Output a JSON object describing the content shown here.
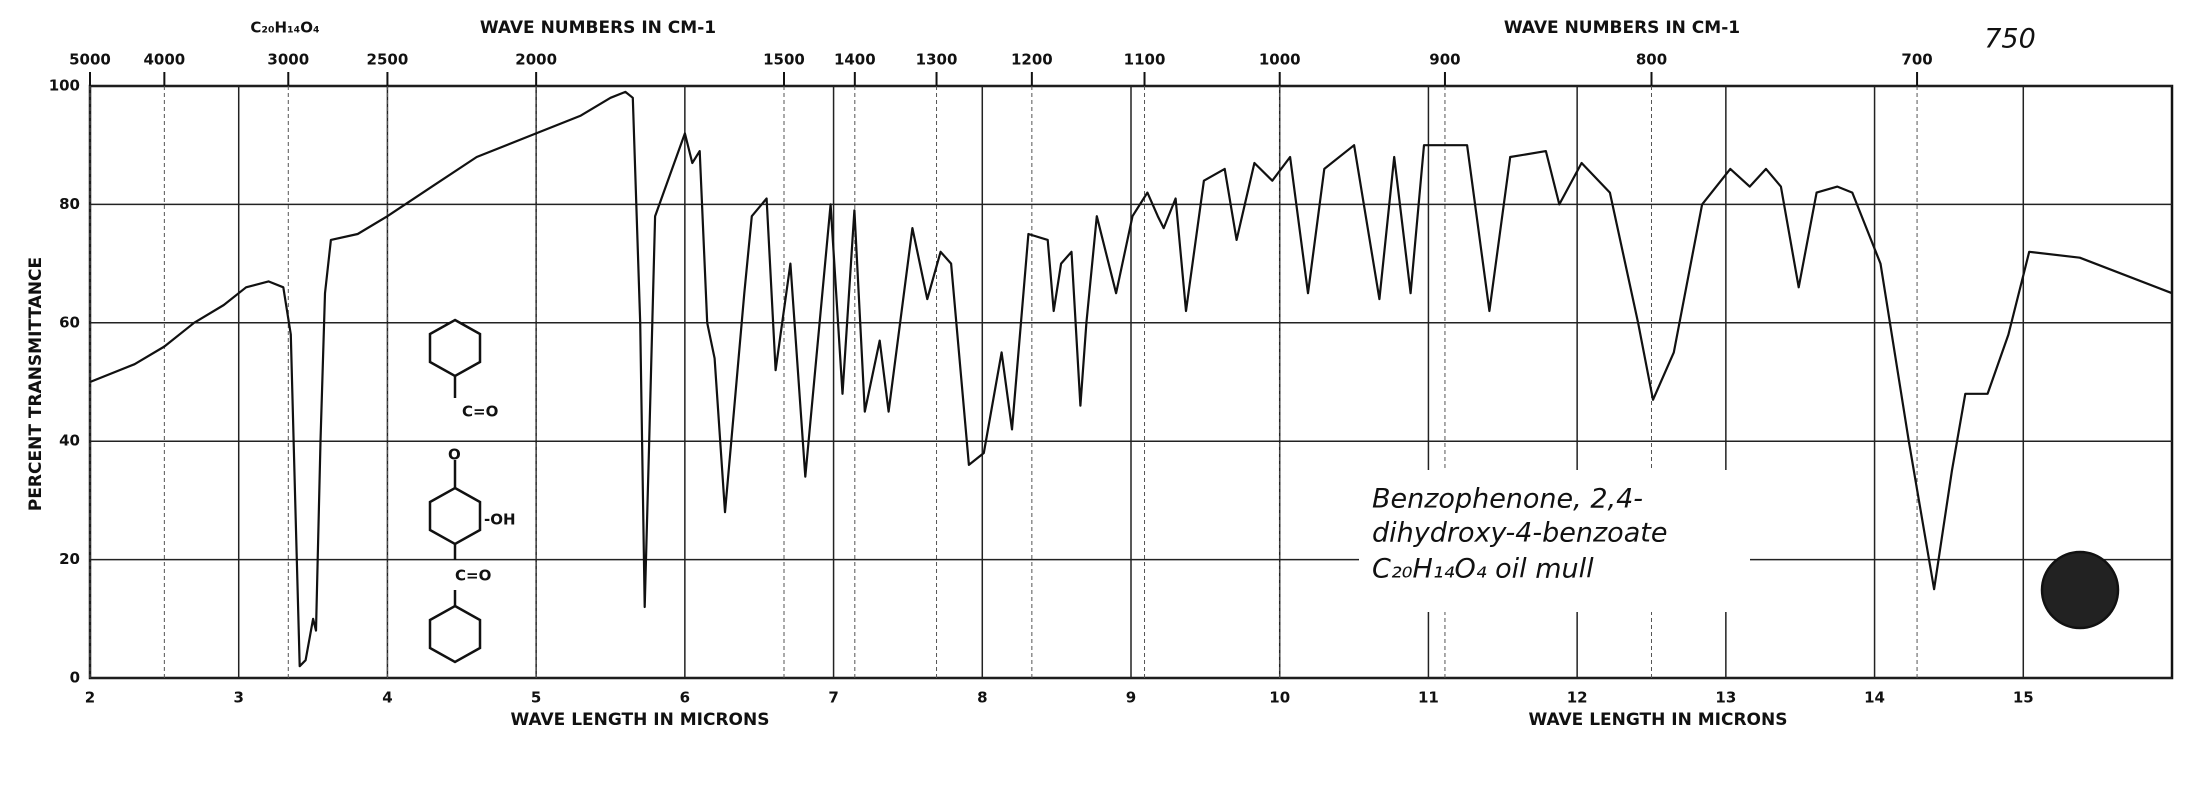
{
  "chart_data": {
    "type": "line",
    "formula_top": "C₂₀H₁₄O₄",
    "x2label": "WAVE NUMBERS IN CM-1",
    "sheet_number": "750",
    "ylabel": "PERCENT TRANSMITTANCE",
    "xlabel": "WAVE LENGTH IN MICRONS",
    "annotation": [
      "Benzophenone, 2,4-",
      "dihydroxy-4-benzoate",
      "C₂₀H₁₄O₄   oil mull"
    ],
    "structure_labels": [
      "C=O",
      "O",
      "-OH",
      "C=O"
    ],
    "color": "#111111",
    "grid": true,
    "xlim": [
      2,
      16
    ],
    "xticks": [
      2,
      3,
      4,
      5,
      6,
      7,
      8,
      9,
      10,
      11,
      12,
      13,
      14,
      15
    ],
    "ylim": [
      0,
      100
    ],
    "yticks": [
      0,
      20,
      40,
      60,
      80,
      100
    ],
    "x2scale": "reciprocal",
    "x2lim": [
      5000,
      625
    ],
    "x2ticks": [
      5000,
      4000,
      3000,
      2500,
      2000,
      1500,
      1400,
      1300,
      1200,
      1100,
      1000,
      900,
      800,
      700
    ],
    "x": [
      2.0,
      2.3,
      2.5,
      2.7,
      2.9,
      3.05,
      3.2,
      3.3,
      3.35,
      3.38,
      3.41,
      3.45,
      3.5,
      3.52,
      3.55,
      3.58,
      3.62,
      3.8,
      4.0,
      4.3,
      4.6,
      5.0,
      5.3,
      5.5,
      5.6,
      5.65,
      5.7,
      5.73,
      5.76,
      5.8,
      5.9,
      6.0,
      6.05,
      6.1,
      6.15,
      6.2,
      6.27,
      6.33,
      6.4,
      6.45,
      6.55,
      6.61,
      6.71,
      6.81,
      6.98,
      7.06,
      7.14,
      7.21,
      7.31,
      7.37,
      7.53,
      7.63,
      7.72,
      7.79,
      7.91,
      8.01,
      8.13,
      8.2,
      8.31,
      8.44,
      8.48,
      8.53,
      8.6,
      8.66,
      8.7,
      8.77,
      8.9,
      9.01,
      9.11,
      9.18,
      9.22,
      9.3,
      9.37,
      9.49,
      9.63,
      9.71,
      9.83,
      9.95,
      10.07,
      10.19,
      10.3,
      10.5,
      10.67,
      10.77,
      10.88,
      10.97,
      11.26,
      11.41,
      11.55,
      11.79,
      11.88,
      12.03,
      12.22,
      12.41,
      12.51,
      12.65,
      12.84,
      13.03,
      13.16,
      13.27,
      13.37,
      13.49,
      13.61,
      13.75,
      13.85,
      14.04,
      14.23,
      14.4,
      14.52,
      14.61,
      14.76,
      14.9,
      15.0,
      15.04,
      15.38,
      16.0
    ],
    "values": [
      50,
      53,
      56,
      60,
      63,
      66,
      67,
      66,
      58,
      30,
      2,
      3,
      10,
      8,
      40,
      65,
      74,
      75,
      78,
      83,
      88,
      92,
      95,
      98,
      99,
      98,
      60,
      12,
      40,
      78,
      85,
      92,
      87,
      89,
      60,
      54,
      28,
      45,
      65,
      78,
      81,
      52,
      70,
      34,
      80,
      48,
      79,
      45,
      57,
      45,
      76,
      64,
      72,
      70,
      36,
      38,
      55,
      42,
      75,
      74,
      62,
      70,
      72,
      46,
      60,
      78,
      65,
      78,
      82,
      78,
      76,
      81,
      62,
      84,
      86,
      74,
      87,
      84,
      88,
      65,
      86,
      90,
      64,
      88,
      65,
      90,
      90,
      62,
      88,
      89,
      80,
      87,
      82,
      60,
      47,
      55,
      80,
      86,
      83,
      86,
      83,
      66,
      82,
      83,
      82,
      70,
      40,
      15,
      35,
      48,
      48,
      58,
      68,
      72,
      71,
      65
    ]
  }
}
